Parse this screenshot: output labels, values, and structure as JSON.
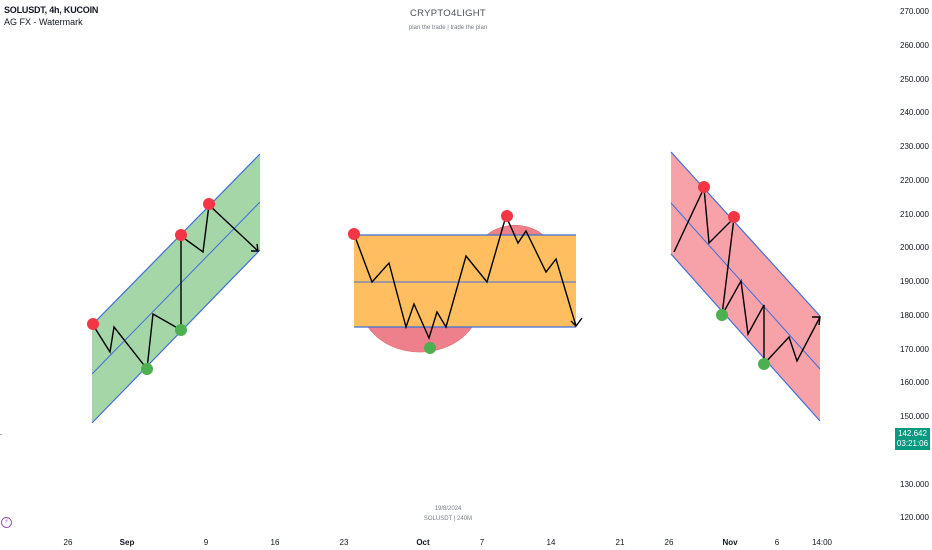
{
  "header": {
    "symbol": "SOLUSDT, 4h, KUCOIN",
    "indicator": "AG FX - Watermark"
  },
  "watermark": {
    "title": "CRYPTO4LIGHT",
    "subtitle": "plan the trade | trade the plan",
    "date": "19/8/2024",
    "symbol_tf": "SOLUSDT | 240M"
  },
  "current_price": {
    "value": "142.642",
    "countdown": "03:21:06",
    "color": "#089981"
  },
  "price_axis": {
    "min": 115,
    "max": 272,
    "labels": [
      "270.000",
      "260.000",
      "250.000",
      "240.000",
      "230.000",
      "220.000",
      "210.000",
      "200.000",
      "190.000",
      "180.000",
      "170.000",
      "160.000",
      "150.000",
      "130.000",
      "120.000"
    ]
  },
  "time_axis": {
    "labels": [
      {
        "text": "26",
        "bold": false
      },
      {
        "text": "Sep",
        "bold": true
      },
      {
        "text": "9",
        "bold": false
      },
      {
        "text": "16",
        "bold": false
      },
      {
        "text": "23",
        "bold": false
      },
      {
        "text": "Oct",
        "bold": true
      },
      {
        "text": "7",
        "bold": false
      },
      {
        "text": "14",
        "bold": false
      },
      {
        "text": "21",
        "bold": false
      },
      {
        "text": "26",
        "bold": false
      },
      {
        "text": "Nov",
        "bold": true
      },
      {
        "text": "6",
        "bold": false
      },
      {
        "text": "14:00",
        "bold": false
      }
    ]
  },
  "colors": {
    "ascending_fill": "#a5d6a7",
    "range_fill": "#ffbf60",
    "descending_fill": "#f7a1a8",
    "channel_line": "#3f6fd8",
    "pivot_high": "#f23645",
    "pivot_low": "#4caf50",
    "path": "#000000"
  }
}
